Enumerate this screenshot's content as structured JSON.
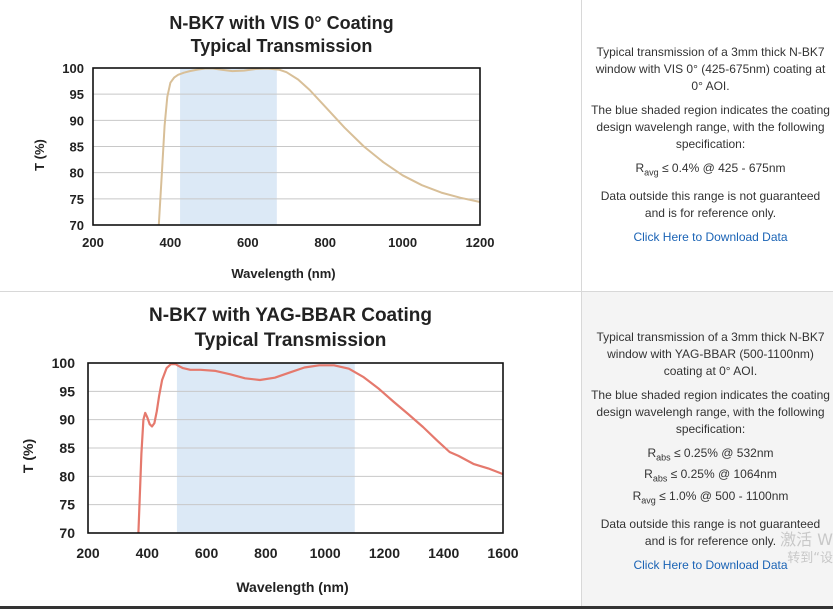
{
  "colors": {
    "shade": "#dce9f6",
    "curve1": "#d8bf98",
    "curve2": "#e5796d",
    "link": "#1a63b5",
    "grid": "#c8c8c8"
  },
  "chart_data": [
    {
      "type": "line",
      "title": [
        "N-BK7 with VIS 0° Coating",
        "Typical Transmission"
      ],
      "xlabel": "Wavelength (nm)",
      "ylabel": "T (%)",
      "xlim": [
        200,
        1200
      ],
      "ylim": [
        70,
        100
      ],
      "xticks": [
        200,
        400,
        600,
        800,
        1000,
        1200
      ],
      "yticks": [
        70,
        75,
        80,
        85,
        90,
        95,
        100
      ],
      "shaded_range": [
        425,
        675
      ],
      "series": [
        {
          "name": "Transmission",
          "x": [
            370,
            378,
            385,
            392,
            400,
            410,
            420,
            435,
            450,
            470,
            490,
            510,
            530,
            560,
            590,
            620,
            650,
            680,
            700,
            730,
            760,
            800,
            850,
            900,
            950,
            1000,
            1050,
            1100,
            1150,
            1200
          ],
          "y": [
            70,
            80,
            89,
            94.5,
            97.2,
            98.2,
            98.7,
            99.1,
            99.4,
            99.7,
            99.9,
            99.9,
            99.7,
            99.4,
            99.5,
            99.8,
            99.9,
            99.7,
            99.2,
            97.8,
            95.8,
            92.6,
            88.6,
            85.0,
            82.0,
            79.5,
            77.6,
            76.2,
            75.2,
            74.4
          ]
        }
      ]
    },
    {
      "type": "line",
      "title": [
        "N-BK7 with YAG-BBAR Coating",
        "Typical Transmission"
      ],
      "xlabel": "Wavelength (nm)",
      "ylabel": "T (%)",
      "xlim": [
        200,
        1600
      ],
      "ylim": [
        70,
        100
      ],
      "xticks": [
        200,
        400,
        600,
        800,
        1000,
        1200,
        1400,
        1600
      ],
      "yticks": [
        70,
        75,
        80,
        85,
        90,
        95,
        100
      ],
      "shaded_range": [
        500,
        1100
      ],
      "series": [
        {
          "name": "Transmission",
          "x": [
            370,
            375,
            380,
            387,
            393,
            400,
            408,
            416,
            424,
            432,
            440,
            450,
            465,
            480,
            495,
            505,
            520,
            545,
            580,
            630,
            680,
            730,
            780,
            830,
            880,
            930,
            980,
            1030,
            1080,
            1130,
            1180,
            1230,
            1280,
            1330,
            1380,
            1420,
            1450,
            1500,
            1550,
            1600
          ],
          "y": [
            70,
            77,
            84,
            90,
            91.2,
            90.4,
            89.2,
            88.8,
            89.4,
            91.5,
            94.2,
            97.0,
            99.1,
            99.8,
            99.8,
            99.5,
            99.1,
            98.8,
            98.8,
            98.6,
            98.0,
            97.3,
            97.0,
            97.4,
            98.3,
            99.2,
            99.6,
            99.6,
            99.0,
            97.5,
            95.5,
            93.2,
            91.0,
            88.7,
            86.2,
            84.3,
            83.6,
            82.2,
            81.4,
            80.4
          ]
        }
      ]
    }
  ],
  "panels": [
    {
      "desc1": "Typical transmission of a 3mm thick N-BK7 window with VIS 0° (425-675nm) coating at 0° AOI.",
      "desc2": "The blue shaded region indicates the coating design wavelengh range, with the following specification:",
      "specs": [
        {
          "r": "R",
          "sub": "avg",
          "rest": " ≤ 0.4% @ 425 - 675nm"
        }
      ],
      "desc3": "Data outside this range is not guaranteed and is for reference only.",
      "link": "Click Here to Download Data"
    },
    {
      "desc1": "Typical transmission of a 3mm thick N-BK7 window with YAG-BBAR (500-1100nm) coating at 0° AOI.",
      "desc2": "The blue shaded region indicates the coating design wavelengh range, with the following specification:",
      "specs": [
        {
          "r": "R",
          "sub": "abs",
          "rest": " ≤ 0.25% @ 532nm"
        },
        {
          "r": "R",
          "sub": "abs",
          "rest": " ≤ 0.25% @ 1064nm"
        },
        {
          "r": "R",
          "sub": "avg",
          "rest": " ≤ 1.0% @ 500 - 1100nm"
        }
      ],
      "desc3": "Data outside this range is not guaranteed and is for reference only.",
      "link": "Click Here to Download Data"
    }
  ],
  "watermark": {
    "line1": "激活 W",
    "line2": "转到“设"
  }
}
